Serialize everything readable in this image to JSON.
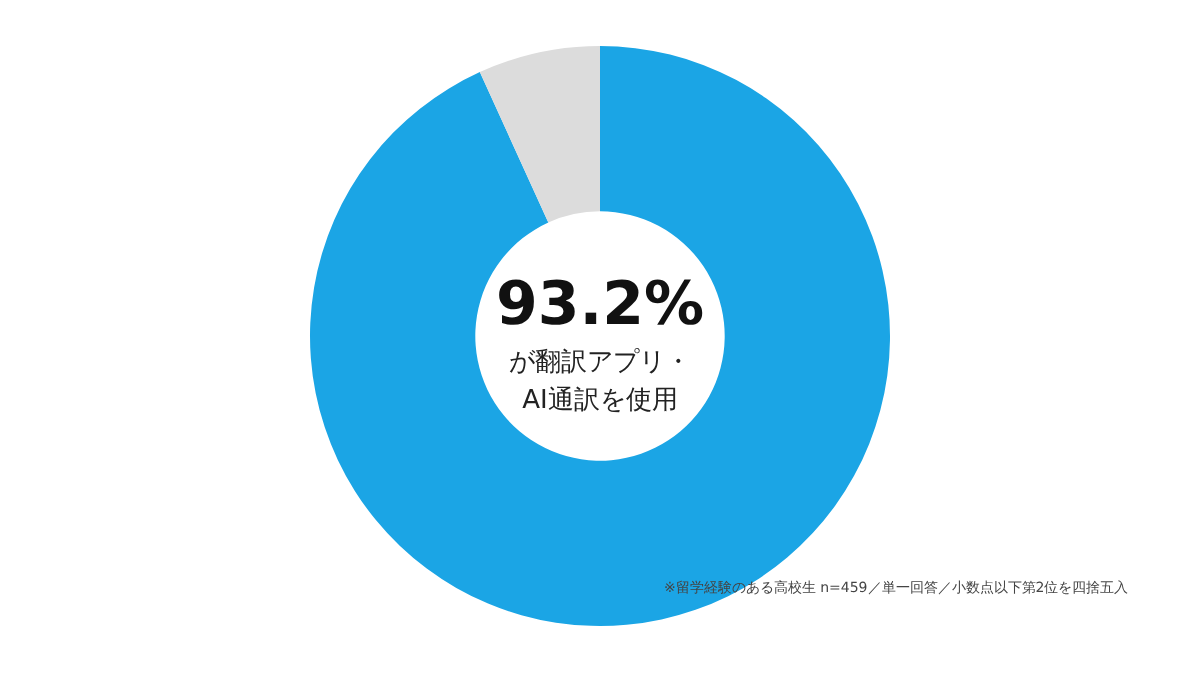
{
  "chart_data": {
    "type": "donut",
    "categories": [
      null,
      null
    ],
    "values": [
      93.2,
      6.8
    ],
    "colors": [
      "#1ba5e5",
      "#dcdcdc"
    ],
    "annotations": [
      "93.2%",
      "が翻訳アプリ・",
      "AI通訳を使用",
      "※留学経験のある高校生 n=459／単一回答／小数点以下第2位を四捨五入"
    ]
  }
}
